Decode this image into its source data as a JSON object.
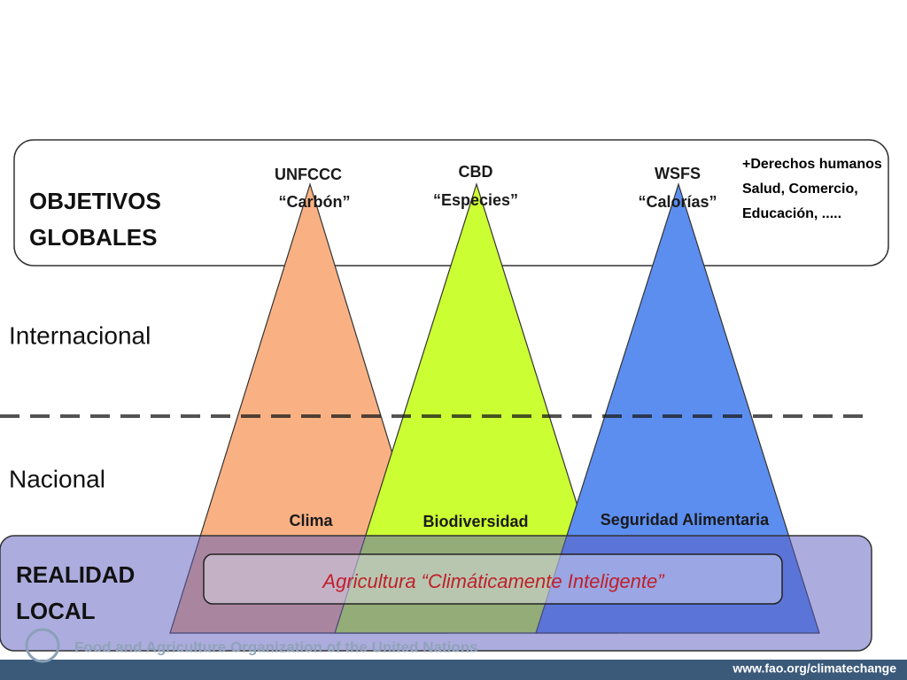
{
  "goals_box": {
    "title_lines": [
      "OBJETIVOS",
      "GLOBALES"
    ],
    "extra_lines": [
      "+Derechos humanos",
      "Salud, Comercio,",
      "Educación, ....."
    ]
  },
  "levels": [
    "Internacional",
    "Nacional"
  ],
  "pyramids": [
    {
      "top_lines": [
        "UNFCCC",
        "“Carbón”"
      ],
      "bottom_label": "Clima"
    },
    {
      "top_lines": [
        "CBD",
        "“Especies”"
      ],
      "bottom_label": "Biodiversidad"
    },
    {
      "top_lines": [
        "WSFS",
        "“Calorías”"
      ],
      "bottom_label": "Seguridad Alimentaria"
    }
  ],
  "local": {
    "title_lines": [
      "REALIDAD",
      "LOCAL"
    ],
    "banner": "Agricultura “Climáticamente Inteligente”"
  },
  "footer": {
    "organization": "Food and Agriculture Organization of the United Nations",
    "url": "www.fao.org/climatechange"
  }
}
